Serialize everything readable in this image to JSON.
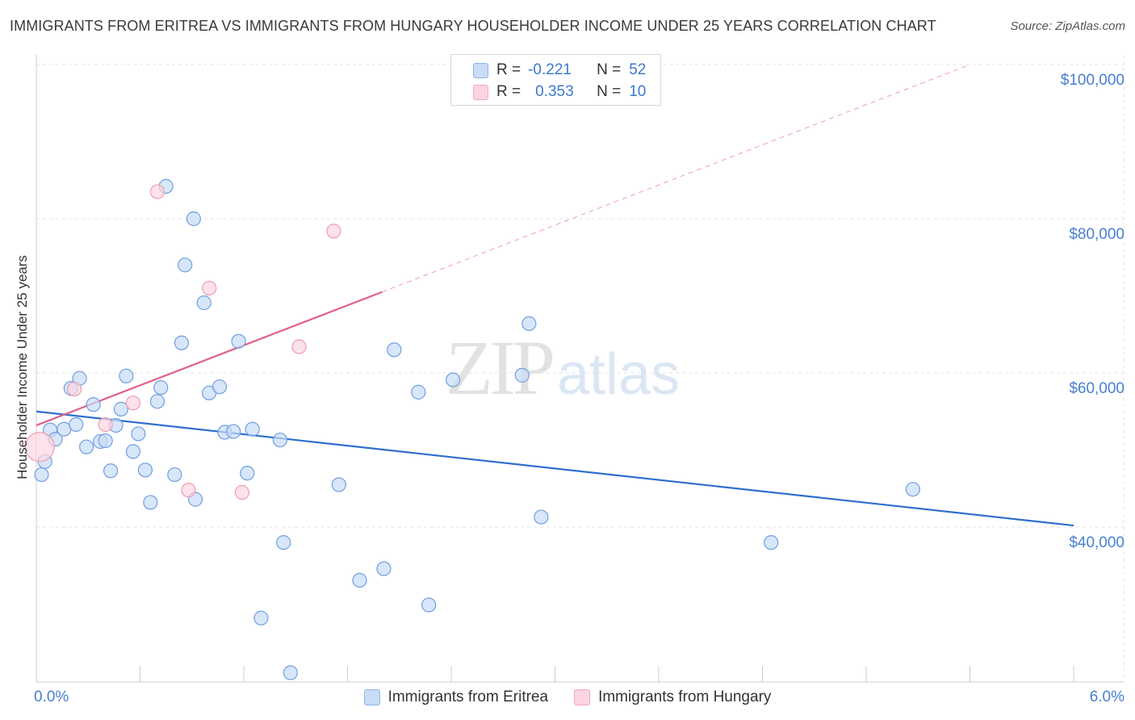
{
  "title": "IMMIGRANTS FROM ERITREA VS IMMIGRANTS FROM HUNGARY HOUSEHOLDER INCOME UNDER 25 YEARS CORRELATION CHART",
  "source": "Source: ZipAtlas.com",
  "watermark": {
    "zip": "ZIP",
    "atlas": "atlas"
  },
  "legend_top": [
    {
      "r_label": "R =",
      "r_value": "-0.221",
      "n_label": "N =",
      "n_value": "52"
    },
    {
      "r_label": "R =",
      "r_value": "0.353",
      "n_label": "N =",
      "n_value": "10"
    }
  ],
  "colors": {
    "eritrea_fill": "#c8dcf7",
    "eritrea_stroke": "#6f9fdf",
    "eritrea_line": "#2f6fcf",
    "hungary_fill": "#fcd5e0",
    "hungary_stroke": "#ee9cb4",
    "hungary_line": "#e0608a",
    "tick_text": "#4a7fd0",
    "grid": "#e3e3e3"
  },
  "chart_data": {
    "type": "scatter",
    "title": "IMMIGRANTS FROM ERITREA VS IMMIGRANTS FROM HUNGARY HOUSEHOLDER INCOME UNDER 25 YEARS CORRELATION CHART",
    "xlabel": "",
    "ylabel": "Householder Income Under 25 years",
    "xlim": [
      0,
      6
    ],
    "ylim": [
      20000,
      102000
    ],
    "x_tick_labels": [
      "0.0%",
      "6.0%"
    ],
    "y_ticks": [
      40000,
      60000,
      80000,
      100000
    ],
    "y_tick_labels": [
      "$40,000",
      "$60,000",
      "$80,000",
      "$100,000"
    ],
    "legend_position": "bottom",
    "series": [
      {
        "name": "Immigrants from Eritrea",
        "color": "#6f9fdf",
        "trend": {
          "x": [
            0.0,
            6.0
          ],
          "y": [
            55000,
            40200
          ],
          "dashed_x": null
        },
        "points": [
          {
            "x": 0.03,
            "y": 46800
          },
          {
            "x": 0.05,
            "y": 48500
          },
          {
            "x": 0.08,
            "y": 52600
          },
          {
            "x": 0.11,
            "y": 51400
          },
          {
            "x": 0.16,
            "y": 52700
          },
          {
            "x": 0.2,
            "y": 58000
          },
          {
            "x": 0.23,
            "y": 53300
          },
          {
            "x": 0.25,
            "y": 59300
          },
          {
            "x": 0.29,
            "y": 50400
          },
          {
            "x": 0.33,
            "y": 55900
          },
          {
            "x": 0.37,
            "y": 51100
          },
          {
            "x": 0.4,
            "y": 51200
          },
          {
            "x": 0.43,
            "y": 47300
          },
          {
            "x": 0.46,
            "y": 53200
          },
          {
            "x": 0.49,
            "y": 55300
          },
          {
            "x": 0.52,
            "y": 59600
          },
          {
            "x": 0.56,
            "y": 49800
          },
          {
            "x": 0.59,
            "y": 52100
          },
          {
            "x": 0.63,
            "y": 47400
          },
          {
            "x": 0.66,
            "y": 43200
          },
          {
            "x": 0.7,
            "y": 56300
          },
          {
            "x": 0.72,
            "y": 58100
          },
          {
            "x": 0.75,
            "y": 84200
          },
          {
            "x": 0.8,
            "y": 46800
          },
          {
            "x": 0.84,
            "y": 63900
          },
          {
            "x": 0.86,
            "y": 74000
          },
          {
            "x": 0.91,
            "y": 80000
          },
          {
            "x": 0.92,
            "y": 43600
          },
          {
            "x": 0.97,
            "y": 69100
          },
          {
            "x": 1.0,
            "y": 57400
          },
          {
            "x": 1.06,
            "y": 58200
          },
          {
            "x": 1.09,
            "y": 52300
          },
          {
            "x": 1.14,
            "y": 52400
          },
          {
            "x": 1.17,
            "y": 64100
          },
          {
            "x": 1.22,
            "y": 47000
          },
          {
            "x": 1.25,
            "y": 52700
          },
          {
            "x": 1.3,
            "y": 28200
          },
          {
            "x": 1.41,
            "y": 51300
          },
          {
            "x": 1.43,
            "y": 38000
          },
          {
            "x": 1.47,
            "y": 21100
          },
          {
            "x": 1.75,
            "y": 45500
          },
          {
            "x": 1.87,
            "y": 33100
          },
          {
            "x": 2.01,
            "y": 34600
          },
          {
            "x": 2.07,
            "y": 63000
          },
          {
            "x": 2.21,
            "y": 57500
          },
          {
            "x": 2.27,
            "y": 29900
          },
          {
            "x": 2.41,
            "y": 59100
          },
          {
            "x": 2.81,
            "y": 59700
          },
          {
            "x": 2.85,
            "y": 66400
          },
          {
            "x": 2.92,
            "y": 41300
          },
          {
            "x": 4.25,
            "y": 38000
          },
          {
            "x": 5.07,
            "y": 44900
          }
        ]
      },
      {
        "name": "Immigrants from Hungary",
        "color": "#ee9cb4",
        "trend": {
          "x": [
            0.0,
            2.0
          ],
          "y": [
            53200,
            70500
          ],
          "dashed_x": [
            2.0,
            5.4
          ],
          "dashed_y": [
            70500,
            100000
          ]
        },
        "points": [
          {
            "x": 0.02,
            "y": 50400
          },
          {
            "x": 0.22,
            "y": 57900
          },
          {
            "x": 0.4,
            "y": 53300
          },
          {
            "x": 0.56,
            "y": 56100
          },
          {
            "x": 0.7,
            "y": 83500
          },
          {
            "x": 0.88,
            "y": 44800
          },
          {
            "x": 1.0,
            "y": 71000
          },
          {
            "x": 1.19,
            "y": 44500
          },
          {
            "x": 1.52,
            "y": 63400
          },
          {
            "x": 1.72,
            "y": 78400
          }
        ]
      }
    ]
  }
}
